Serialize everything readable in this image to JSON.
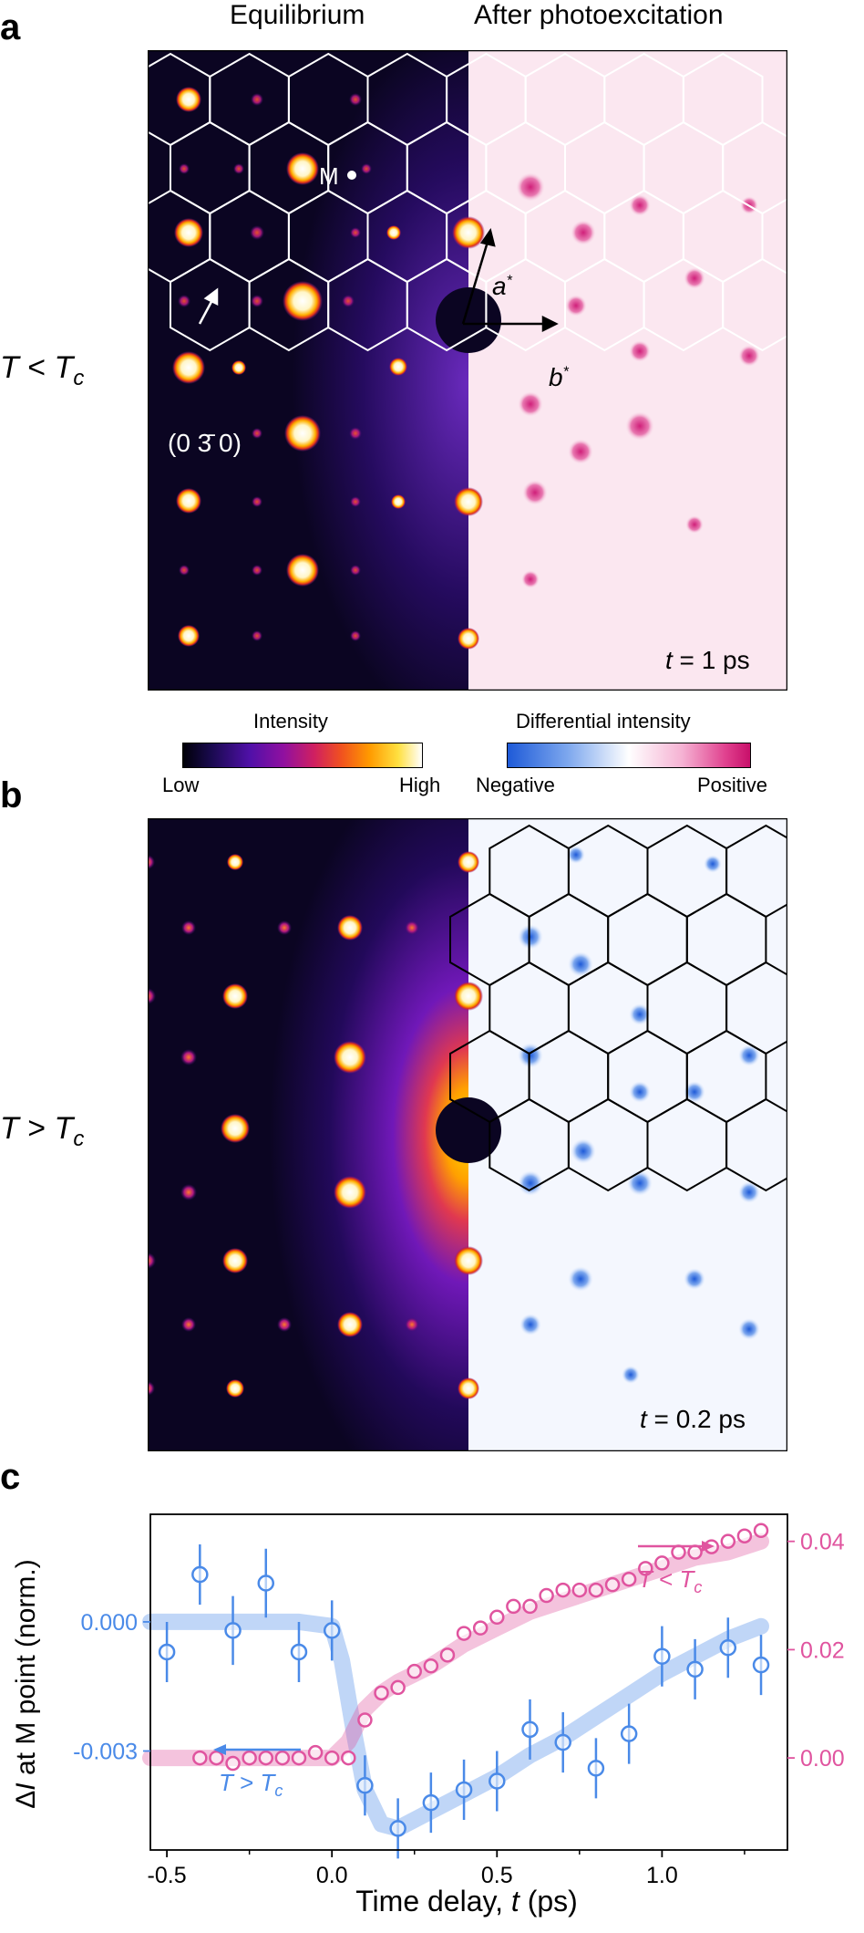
{
  "panels": {
    "a": "a",
    "b": "b",
    "c": "c"
  },
  "column_titles": {
    "left": "Equilibrium",
    "right": "After photoexcitation"
  },
  "panel_a": {
    "temperature": "T < Tc",
    "time": "t = 1 ps",
    "m_label": "M",
    "a_star": "a*",
    "b_star": "b*",
    "peak_label": "(0 3̄ 0)"
  },
  "panel_b": {
    "temperature": "T > Tc",
    "time": "t = 0.2 ps"
  },
  "colorbars": {
    "intensity": {
      "title": "Intensity",
      "low": "Low",
      "high": "High"
    },
    "differential": {
      "title": "Differential intensity",
      "negative": "Negative",
      "positive": "Positive"
    }
  },
  "colors": {
    "pink": "#e0549f",
    "blue": "#4a8ae8",
    "dark_bg": "#0b0522"
  },
  "chart_data": {
    "type": "scatter",
    "xlabel": "Time delay, t (ps)",
    "ylabel_left": "ΔI at M point (norm.)",
    "xlim": [
      -0.55,
      1.38
    ],
    "x_ticks": [
      -0.5,
      0.0,
      0.5,
      1.0
    ],
    "x_tick_labels": [
      "-0.5",
      "0.0",
      "0.5",
      "1.0"
    ],
    "left_axis": {
      "ylim": [
        -0.0053,
        0.0025
      ],
      "ticks": [
        0.0,
        -0.003
      ],
      "tick_labels": [
        "0.000",
        "-0.003"
      ]
    },
    "right_axis": {
      "ylim": [
        -0.017,
        0.045
      ],
      "ticks": [
        0.0,
        0.02,
        0.04
      ],
      "tick_labels": [
        "0.00",
        "0.02",
        "0.04"
      ]
    },
    "series": [
      {
        "name": "T > Tc",
        "axis": "left",
        "color": "#4a8ae8",
        "x": [
          -0.5,
          -0.4,
          -0.3,
          -0.2,
          -0.1,
          0.0,
          0.1,
          0.2,
          0.3,
          0.4,
          0.5,
          0.6,
          0.7,
          0.8,
          0.9,
          1.0,
          1.1,
          1.2,
          1.3
        ],
        "y": [
          -0.0007,
          0.0011,
          -0.0002,
          0.0009,
          -0.0007,
          -0.0002,
          -0.0038,
          -0.0048,
          -0.0042,
          -0.0039,
          -0.0037,
          -0.0025,
          -0.0028,
          -0.0034,
          -0.0026,
          -0.0008,
          -0.0011,
          -0.0006,
          -0.001
        ],
        "err": [
          0.0007,
          0.0007,
          0.0008,
          0.0008,
          0.0007,
          0.0007,
          0.0007,
          0.0007,
          0.0007,
          0.0007,
          0.0007,
          0.0007,
          0.0007,
          0.0007,
          0.0007,
          0.0007,
          0.0007,
          0.0007,
          0.0007
        ],
        "fit_x": [
          -0.55,
          -0.1,
          0.0,
          0.03,
          0.07,
          0.1,
          0.15,
          0.2,
          0.3,
          0.4,
          0.5,
          0.6,
          0.7,
          0.8,
          0.9,
          1.0,
          1.1,
          1.2,
          1.3
        ],
        "fit_y": [
          0.0,
          0.0,
          -0.0001,
          -0.0009,
          -0.0027,
          -0.0039,
          -0.0047,
          -0.0048,
          -0.0044,
          -0.004,
          -0.0036,
          -0.0031,
          -0.0027,
          -0.0022,
          -0.0017,
          -0.0012,
          -0.0008,
          -0.0004,
          -0.0001
        ]
      },
      {
        "name": "T < Tc",
        "axis": "right",
        "color": "#e0549f",
        "x": [
          -0.4,
          -0.35,
          -0.3,
          -0.25,
          -0.2,
          -0.15,
          -0.1,
          -0.05,
          0.0,
          0.05,
          0.1,
          0.15,
          0.2,
          0.25,
          0.3,
          0.35,
          0.4,
          0.45,
          0.5,
          0.55,
          0.6,
          0.65,
          0.7,
          0.75,
          0.8,
          0.85,
          0.9,
          0.95,
          1.0,
          1.05,
          1.1,
          1.15,
          1.2,
          1.25,
          1.3
        ],
        "y": [
          0.0,
          0.0,
          -0.001,
          0.0,
          0.0,
          0.0,
          0.0,
          0.001,
          0.0,
          0.0,
          0.007,
          0.012,
          0.013,
          0.016,
          0.017,
          0.019,
          0.023,
          0.024,
          0.026,
          0.028,
          0.028,
          0.03,
          0.031,
          0.031,
          0.031,
          0.032,
          0.033,
          0.035,
          0.036,
          0.038,
          0.038,
          0.039,
          0.04,
          0.041,
          0.042
        ],
        "fit_x": [
          -0.55,
          0.0,
          0.05,
          0.1,
          0.15,
          0.2,
          0.3,
          0.4,
          0.5,
          0.6,
          0.7,
          0.8,
          0.9,
          1.0,
          1.1,
          1.2,
          1.3
        ],
        "fit_y": [
          0.0,
          0.0,
          0.003,
          0.009,
          0.012,
          0.014,
          0.017,
          0.021,
          0.024,
          0.027,
          0.029,
          0.031,
          0.033,
          0.035,
          0.037,
          0.038,
          0.04
        ]
      }
    ],
    "annotations": [
      {
        "text": "T < Tc",
        "color": "#e0549f",
        "arrow": "right"
      },
      {
        "text": "T > Tc",
        "color": "#4a8ae8",
        "arrow": "left"
      }
    ]
  }
}
